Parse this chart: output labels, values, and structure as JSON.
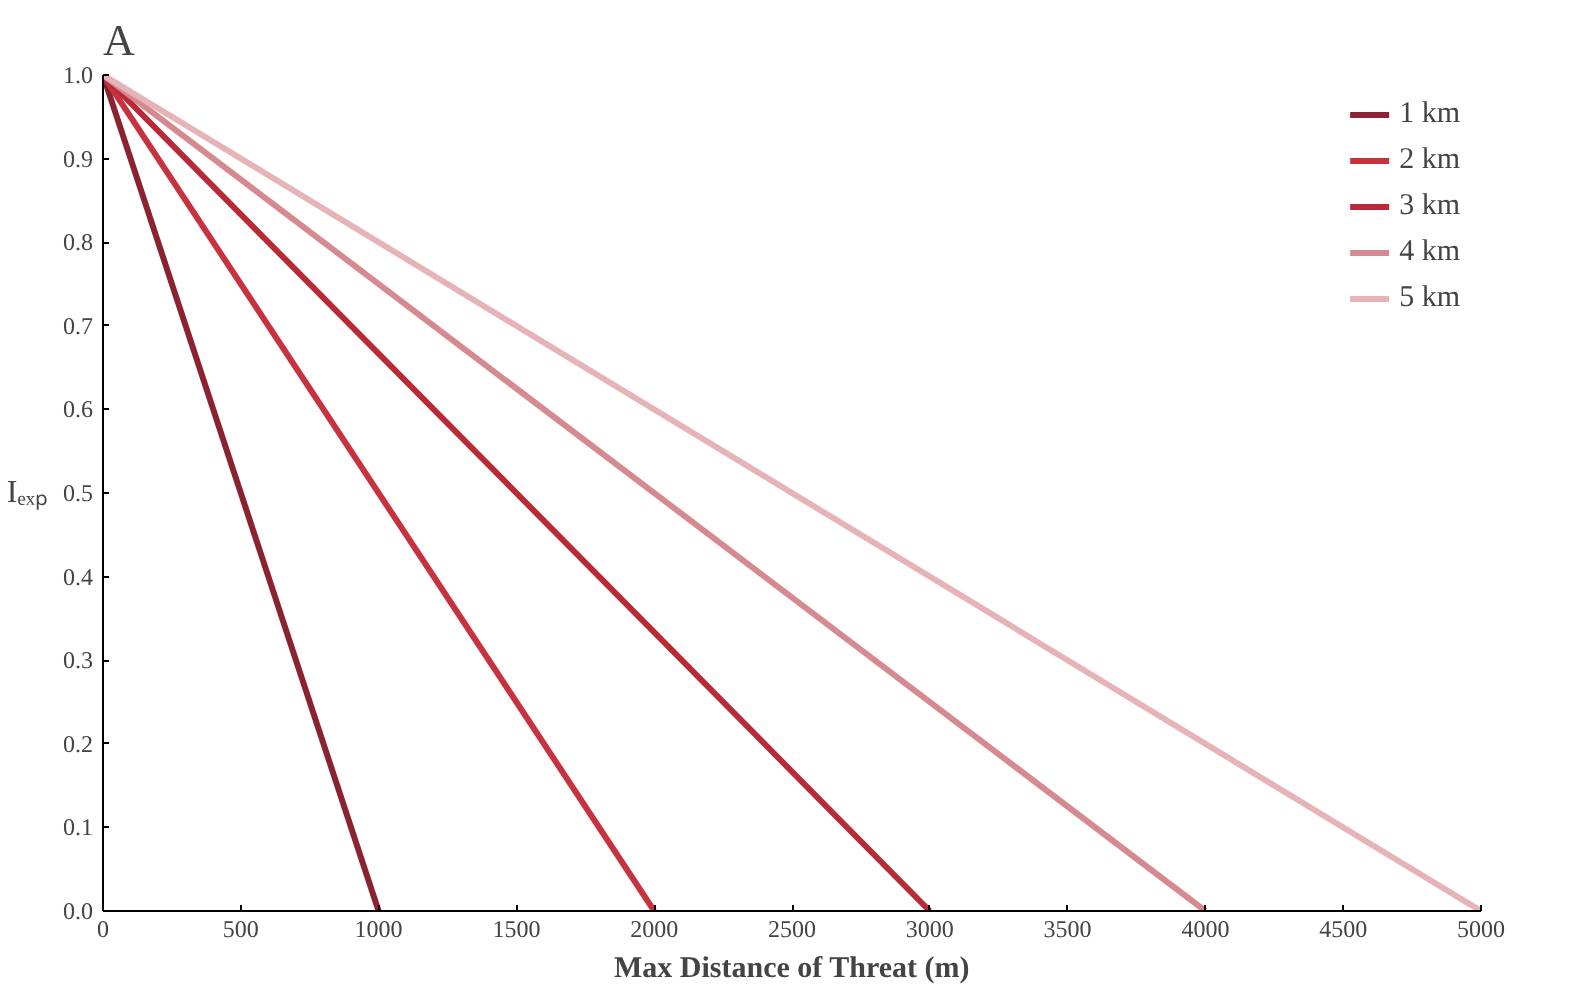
{
  "chart_data": {
    "type": "line",
    "title": "A",
    "xlabel": "Max Distance of Threat (m)",
    "ylabel": "Iₑₓₚ",
    "xlim": [
      0,
      5000
    ],
    "xticks": [
      0,
      500,
      1000,
      1500,
      2000,
      2500,
      3000,
      3500,
      4000,
      4500,
      5000
    ],
    "ylim": [
      0,
      1
    ],
    "yticks": [
      {
        "value": 0,
        "label": "0.0"
      },
      0.1,
      0.2,
      0.3,
      0.4,
      0.5,
      0.6,
      0.7,
      0.8,
      0.9,
      {
        "value": 1,
        "label": "1.0"
      }
    ],
    "grid": false,
    "legend": "top right",
    "line_style": "solid",
    "series": [
      {
        "name": "1 km",
        "color": "#8b2232",
        "x": [
          0,
          1000
        ],
        "values": [
          1,
          0
        ]
      },
      {
        "name": "2 km",
        "color": "#c8323e",
        "x": [
          0,
          2000
        ],
        "values": [
          1,
          0
        ]
      },
      {
        "name": "3 km",
        "color": "#b82a38",
        "x": [
          0,
          3000
        ],
        "values": [
          1,
          0
        ]
      },
      {
        "name": "4 km",
        "color": "#d68a90",
        "x": [
          0,
          4000
        ],
        "values": [
          1,
          0
        ]
      },
      {
        "name": "5 km",
        "color": "#e6b4b8",
        "x": [
          0,
          5000
        ],
        "values": [
          1,
          0
        ]
      }
    ]
  }
}
